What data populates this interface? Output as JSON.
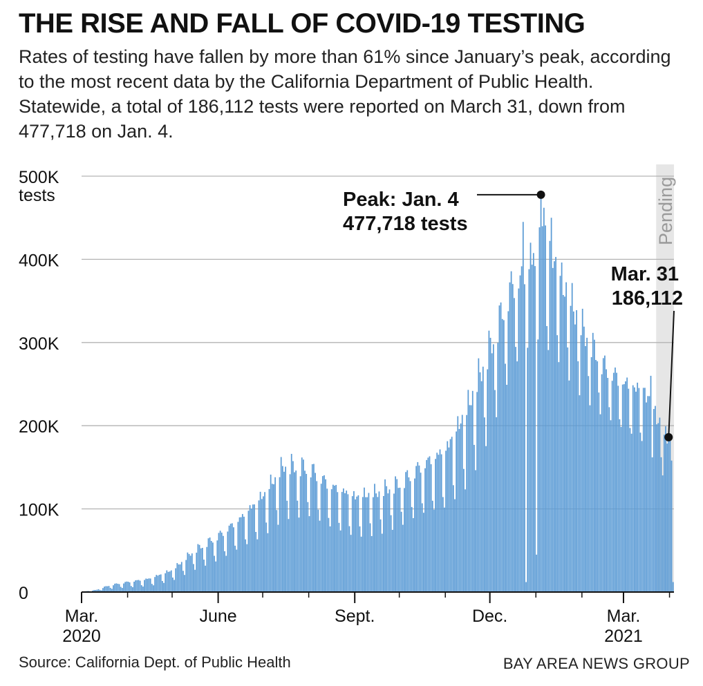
{
  "header": {
    "title": "THE RISE AND FALL OF COVID-19 TESTING",
    "subtitle": "Rates of testing have fallen by more than 61% since January’s peak, according to the most recent data by the California Department of Public Health. Statewide, a total of 186,112 tests were reported on March 31, down from 477,718 on Jan. 4."
  },
  "footer": {
    "source": "Source: California Dept. of Public Health",
    "credit": "BAY AREA NEWS GROUP"
  },
  "colors": {
    "bar": "#5b9bd5",
    "grid": "#b3b3b3",
    "pending_band": "#e6e6e6",
    "text": "#111111"
  },
  "chart_data": {
    "type": "bar",
    "title": "THE RISE AND FALL OF COVID-19 TESTING",
    "ylabel": "tests",
    "ylim": [
      0,
      500000
    ],
    "y_ticks": [
      {
        "value": 0,
        "label": "0"
      },
      {
        "value": 100000,
        "label": "100K"
      },
      {
        "value": 200000,
        "label": "200K"
      },
      {
        "value": 300000,
        "label": "300K"
      },
      {
        "value": 400000,
        "label": "400K"
      },
      {
        "value": 500000,
        "label": "500K",
        "unit": "tests"
      }
    ],
    "x_range": [
      "2020-03-01",
      "2021-04-03"
    ],
    "x_ticks": [
      {
        "date": "2020-03-01",
        "label": "Mar.",
        "sub": "2020"
      },
      {
        "date": "2020-06-01",
        "label": "June",
        "sub": ""
      },
      {
        "date": "2020-09-01",
        "label": "Sept.",
        "sub": ""
      },
      {
        "date": "2020-12-01",
        "label": "Dec.",
        "sub": ""
      },
      {
        "date": "2021-03-01",
        "label": "Mar.",
        "sub": "2021"
      }
    ],
    "pending": {
      "label": "Pending",
      "from": "2021-03-23",
      "to": "2021-04-03"
    },
    "annotations": [
      {
        "date": "2021-01-04",
        "value": 477718,
        "line1": "Peak: Jan. 4",
        "line2": "477,718 tests"
      },
      {
        "date": "2021-03-31",
        "value": 186112,
        "line1": "Mar. 31",
        "line2": "186,112"
      }
    ],
    "anchors": [
      [
        "2020-03-01",
        500,
        0.5
      ],
      [
        "2020-03-10",
        2500,
        0.6
      ],
      [
        "2020-03-20",
        9000,
        0.6
      ],
      [
        "2020-04-01",
        13000,
        0.6
      ],
      [
        "2020-04-15",
        17000,
        0.6
      ],
      [
        "2020-05-01",
        28000,
        0.5
      ],
      [
        "2020-05-15",
        52000,
        0.5
      ],
      [
        "2020-06-01",
        72000,
        0.5
      ],
      [
        "2020-06-15",
        92000,
        0.45
      ],
      [
        "2020-07-01",
        122000,
        0.45
      ],
      [
        "2020-07-15",
        160000,
        0.45
      ],
      [
        "2020-08-01",
        158000,
        0.45
      ],
      [
        "2020-08-15",
        135000,
        0.45
      ],
      [
        "2020-09-01",
        120000,
        0.45
      ],
      [
        "2020-09-15",
        125000,
        0.45
      ],
      [
        "2020-10-01",
        138000,
        0.45
      ],
      [
        "2020-10-15",
        160000,
        0.45
      ],
      [
        "2020-11-01",
        180000,
        0.45
      ],
      [
        "2020-11-15",
        230000,
        0.45
      ],
      [
        "2020-12-01",
        310000,
        0.4
      ],
      [
        "2020-12-15",
        385000,
        0.35
      ],
      [
        "2021-01-01",
        415000,
        0.3
      ],
      [
        "2021-01-04",
        477718,
        0.4
      ],
      [
        "2021-01-15",
        400000,
        0.3
      ],
      [
        "2021-02-01",
        330000,
        0.3
      ],
      [
        "2021-02-15",
        285000,
        0.3
      ],
      [
        "2021-03-01",
        262000,
        0.3
      ],
      [
        "2021-03-15",
        250000,
        0.3
      ],
      [
        "2021-03-31",
        186112,
        0.3
      ],
      [
        "2021-04-02",
        196000,
        0.3
      ]
    ],
    "spikes": [
      {
        "date": "2020-12-23",
        "value": 445000
      },
      {
        "date": "2020-12-28",
        "value": 420000
      },
      {
        "date": "2021-01-04",
        "value": 477718
      },
      {
        "date": "2021-01-06",
        "value": 462000
      },
      {
        "date": "2021-01-11",
        "value": 450000
      },
      {
        "date": "2021-03-19",
        "value": 260000
      },
      {
        "date": "2021-03-31",
        "value": 186112
      }
    ],
    "dips": [
      {
        "date": "2020-12-25",
        "value": 12000
      },
      {
        "date": "2021-01-01",
        "value": 45000
      },
      {
        "date": "2021-04-03",
        "value": 12000
      }
    ]
  }
}
